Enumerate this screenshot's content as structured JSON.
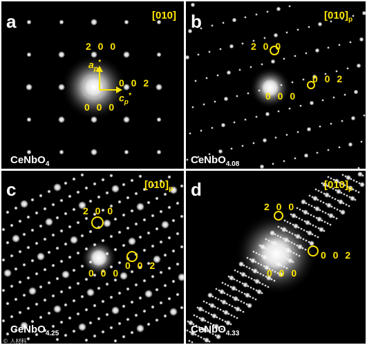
{
  "panels": {
    "a": {
      "letter": "a",
      "zone_axis": "[010]",
      "zone_sub": "",
      "formula": "CeNbO",
      "formula_sub": "4",
      "idx_200": "2 0 0",
      "idx_002": "0 0 2",
      "idx_000": "0 0 0",
      "axis_a": "a",
      "axis_a_sub": "p",
      "axis_a_sup": "*",
      "axis_c": "c",
      "axis_c_sub": "p",
      "axis_c_sup": "*"
    },
    "b": {
      "letter": "b",
      "zone_axis": "[010]",
      "zone_sub": "p",
      "formula": "CeNbO",
      "formula_sub": "4.08",
      "idx_200": "2 0 0",
      "idx_002": "0 0 2",
      "idx_000": "0 0 0"
    },
    "c": {
      "letter": "c",
      "zone_axis": "[010]",
      "zone_sub": "p",
      "formula": "CeNbO",
      "formula_sub": "4.25",
      "idx_200": "2 0 0",
      "idx_002": "0 0 2",
      "idx_000": "0 0 0"
    },
    "d": {
      "letter": "d",
      "zone_axis": "[010]",
      "zone_sub": "p",
      "formula": "CeNbO",
      "formula_sub": "4.33",
      "idx_200": "2 0 0",
      "idx_002": "0 0 2",
      "idx_000": "0 0 0"
    }
  },
  "watermark": "© 人材料",
  "colors": {
    "label_yellow": "#ffe600",
    "panel_bg": "#000000",
    "spot_white": "#ffffff"
  }
}
